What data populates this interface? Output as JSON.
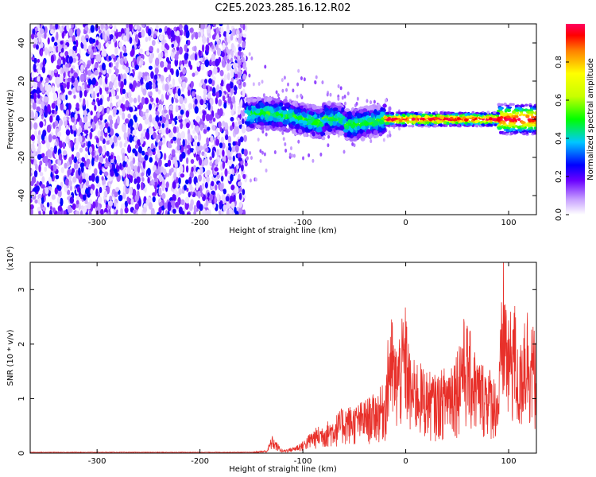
{
  "chart_data": [
    {
      "type": "heatmap",
      "title": "C2E5.2023.285.16.12.R02",
      "xlabel": "Height of straight line (km)",
      "ylabel": "Frequency (Hz)",
      "xlim": [
        -365,
        127
      ],
      "ylim": [
        -50,
        50
      ],
      "xticks": [
        -300,
        -200,
        -100,
        0,
        100
      ],
      "yticks": [
        -40,
        -20,
        0,
        20,
        40
      ],
      "colorbar": {
        "label": "Normalized spectral amplitude",
        "range": [
          0.0,
          1.0
        ],
        "ticks": [
          0.0,
          0.2,
          0.4,
          0.6,
          0.8
        ]
      },
      "regions": [
        {
          "x_range": [
            -365,
            -155
          ],
          "frequency_range": [
            -50,
            50
          ],
          "typical_amplitude": 0.1
        },
        {
          "x_range": [
            -155,
            -20
          ],
          "center_frequency": 0,
          "half_width_hz": 8,
          "typical_amplitude": 0.4
        },
        {
          "x_range": [
            -20,
            127
          ],
          "center_frequency": 0,
          "half_width_hz": 2,
          "typical_amplitude": 0.95
        }
      ]
    },
    {
      "type": "line",
      "title": "",
      "xlabel": "Height of straight line (km)",
      "ylabel": "SNR (10 * v/v)",
      "yscale_label": "(x10⁴)",
      "xlim": [
        -365,
        127
      ],
      "ylim": [
        0,
        3.5
      ],
      "xticks": [
        -300,
        -200,
        -100,
        0,
        100
      ],
      "yticks": [
        0,
        1,
        2,
        3
      ],
      "series": [
        {
          "color": "#e8302a",
          "x": [
            -365,
            -300,
            -200,
            -150,
            -135,
            -130,
            -120,
            -110,
            -100,
            -90,
            -80,
            -70,
            -60,
            -50,
            -40,
            -30,
            -20,
            -15,
            -10,
            0,
            5,
            10,
            20,
            30,
            40,
            50,
            55,
            60,
            70,
            80,
            90,
            95,
            100,
            105,
            110,
            115,
            120,
            127
          ],
          "y": [
            0.01,
            0.01,
            0.01,
            0.02,
            0.05,
            0.3,
            0.05,
            0.1,
            0.2,
            0.4,
            0.5,
            0.6,
            0.8,
            0.8,
            0.9,
            1.0,
            1.2,
            2.5,
            1.8,
            2.5,
            1.5,
            1.6,
            1.4,
            1.3,
            1.5,
            1.8,
            2.3,
            2.2,
            1.6,
            1.5,
            1.2,
            3.4,
            2.2,
            2.8,
            1.5,
            2.6,
            2.5,
            1.9
          ]
        }
      ]
    }
  ]
}
